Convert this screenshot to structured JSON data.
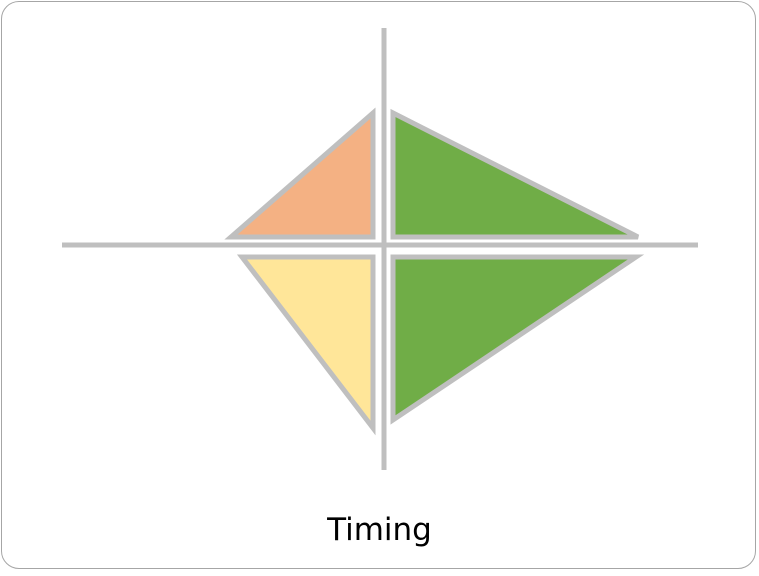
{
  "caption": "Timing",
  "colors": {
    "outline": "#bfbfbf",
    "axis": "#bfbfbf",
    "top_left": "#f4b183",
    "bottom_left": "#ffe699",
    "top_right": "#70ad47",
    "bottom_right": "#70ad47"
  }
}
